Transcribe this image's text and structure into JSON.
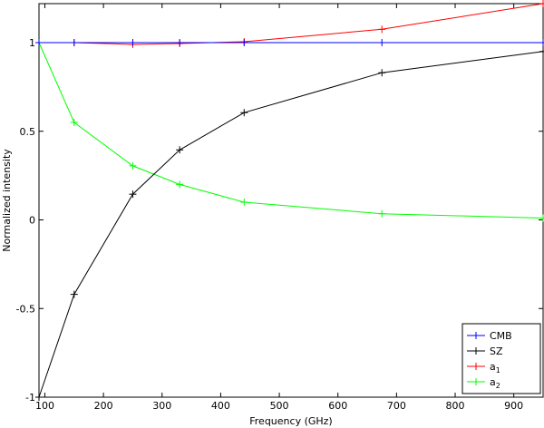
{
  "chart_data": {
    "type": "line",
    "xlabel": "Frequency (GHz)",
    "ylabel": "Normalized intensity",
    "xlim": [
      90,
      950
    ],
    "ylim": [
      -1,
      1.22
    ],
    "xticks": [
      100,
      200,
      300,
      400,
      500,
      600,
      700,
      800,
      900
    ],
    "yticks": [
      -1,
      -0.5,
      0,
      0.5,
      1
    ],
    "grid": false,
    "legend_position": "bottom-right",
    "x": [
      90,
      150,
      250,
      330,
      440,
      675,
      950
    ],
    "series": [
      {
        "name": "CMB",
        "label_main": "CMB",
        "label_sub": "",
        "color": "#0000ff",
        "values": [
          1,
          1,
          1,
          1,
          1,
          1,
          1
        ]
      },
      {
        "name": "SZ",
        "label_main": "SZ",
        "label_sub": "",
        "color": "#000000",
        "values": [
          -1,
          -0.42,
          0.145,
          0.395,
          0.605,
          0.83,
          0.95
        ]
      },
      {
        "name": "a1",
        "label_main": "a",
        "label_sub": "1",
        "color": "#ff0000",
        "values": [
          1,
          1,
          0.99,
          0.995,
          1.005,
          1.075,
          1.22
        ]
      },
      {
        "name": "a2",
        "label_main": "a",
        "label_sub": "2",
        "color": "#00ff00",
        "values": [
          1,
          0.55,
          0.305,
          0.2,
          0.1,
          0.035,
          0.01
        ]
      }
    ]
  }
}
